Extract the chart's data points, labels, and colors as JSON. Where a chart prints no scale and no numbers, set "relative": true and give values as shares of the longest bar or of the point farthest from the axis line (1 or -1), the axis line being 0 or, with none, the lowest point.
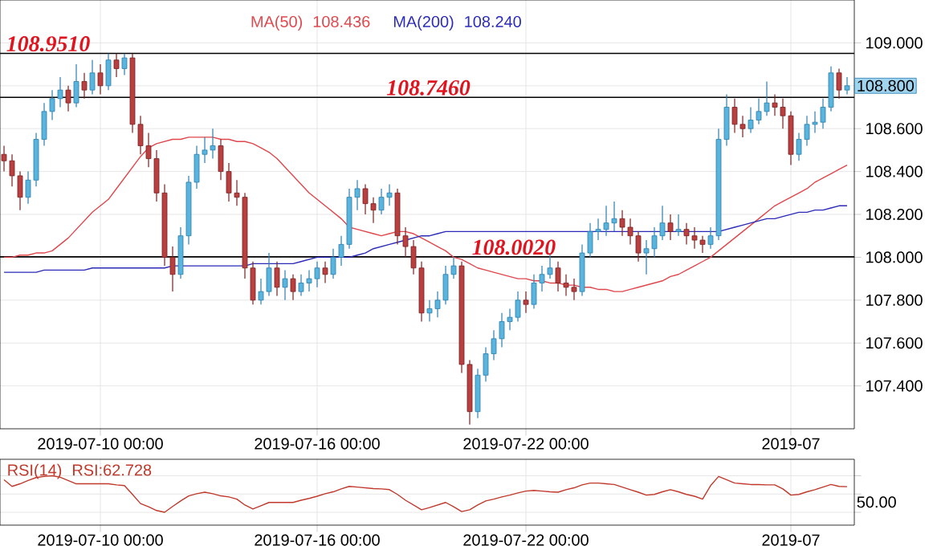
{
  "chart_data": [
    {
      "type": "candlestick",
      "categories": [
        null,
        null,
        null,
        null,
        null,
        null,
        null,
        null,
        null,
        null,
        null,
        null,
        "2019-07-10 00:00",
        null,
        null,
        null,
        null,
        null,
        null,
        null,
        null,
        null,
        null,
        null,
        null,
        null,
        null,
        null,
        null,
        null,
        null,
        null,
        null,
        null,
        null,
        null,
        null,
        null,
        null,
        "2019-07-16 00:00",
        null,
        null,
        null,
        null,
        null,
        null,
        null,
        null,
        null,
        null,
        null,
        null,
        null,
        null,
        null,
        null,
        null,
        null,
        null,
        null,
        null,
        null,
        null,
        null,
        null,
        "2019-07-22 00:00",
        null,
        null,
        null,
        null,
        null,
        null,
        null,
        null,
        null,
        null,
        null,
        null,
        null,
        null,
        null,
        null,
        null,
        null,
        null,
        null,
        null,
        null,
        null,
        null,
        null,
        null,
        null,
        null,
        null,
        null,
        null,
        null,
        "2019-07",
        null,
        null,
        null,
        null,
        null,
        null,
        null
      ],
      "ohlc": [
        [
          108.48,
          108.52,
          108.4,
          108.45
        ],
        [
          108.45,
          108.48,
          108.33,
          108.38
        ],
        [
          108.38,
          108.4,
          108.22,
          108.28
        ],
        [
          108.28,
          108.4,
          108.25,
          108.36
        ],
        [
          108.36,
          108.58,
          108.33,
          108.55
        ],
        [
          108.55,
          108.72,
          108.52,
          108.68
        ],
        [
          108.68,
          108.78,
          108.64,
          108.74
        ],
        [
          108.74,
          108.84,
          108.7,
          108.78
        ],
        [
          108.78,
          108.8,
          108.68,
          108.72
        ],
        [
          108.72,
          108.9,
          108.7,
          108.82
        ],
        [
          108.82,
          108.86,
          108.74,
          108.78
        ],
        [
          108.78,
          108.92,
          108.76,
          108.86
        ],
        [
          108.86,
          108.9,
          108.76,
          108.8
        ],
        [
          108.8,
          108.95,
          108.78,
          108.92
        ],
        [
          108.92,
          108.95,
          108.84,
          108.88
        ],
        [
          108.88,
          108.95,
          108.85,
          108.93
        ],
        [
          108.93,
          108.95,
          108.58,
          108.62
        ],
        [
          108.62,
          108.66,
          108.48,
          108.52
        ],
        [
          108.52,
          108.58,
          108.42,
          108.46
        ],
        [
          108.46,
          108.5,
          108.26,
          108.3
        ],
        [
          108.3,
          108.34,
          107.96,
          108.0
        ],
        [
          108.0,
          108.05,
          107.84,
          107.92
        ],
        [
          107.92,
          108.14,
          107.9,
          108.1
        ],
        [
          108.1,
          108.38,
          108.06,
          108.35
        ],
        [
          108.35,
          108.52,
          108.32,
          108.48
        ],
        [
          108.48,
          108.56,
          108.44,
          108.5
        ],
        [
          108.5,
          108.6,
          108.46,
          108.52
        ],
        [
          108.52,
          108.55,
          108.36,
          108.4
        ],
        [
          108.4,
          108.44,
          108.26,
          108.3
        ],
        [
          108.3,
          108.36,
          108.24,
          108.28
        ],
        [
          108.28,
          108.3,
          107.9,
          107.95
        ],
        [
          107.95,
          107.98,
          107.78,
          107.8
        ],
        [
          107.8,
          107.9,
          107.78,
          107.84
        ],
        [
          107.84,
          108.02,
          107.82,
          107.95
        ],
        [
          107.95,
          107.98,
          107.82,
          107.86
        ],
        [
          107.86,
          107.94,
          107.8,
          107.9
        ],
        [
          107.9,
          107.92,
          107.8,
          107.84
        ],
        [
          107.84,
          107.92,
          107.82,
          107.88
        ],
        [
          107.88,
          107.94,
          107.84,
          107.9
        ],
        [
          107.9,
          107.98,
          107.86,
          107.95
        ],
        [
          107.95,
          107.98,
          107.88,
          107.92
        ],
        [
          107.92,
          108.04,
          107.9,
          108.0
        ],
        [
          108.0,
          108.1,
          107.96,
          108.06
        ],
        [
          108.06,
          108.32,
          108.04,
          108.28
        ],
        [
          108.28,
          108.36,
          108.22,
          108.32
        ],
        [
          108.32,
          108.34,
          108.2,
          108.25
        ],
        [
          108.25,
          108.28,
          108.16,
          108.22
        ],
        [
          108.22,
          108.32,
          108.2,
          108.28
        ],
        [
          108.28,
          108.34,
          108.24,
          108.3
        ],
        [
          108.3,
          108.32,
          108.06,
          108.1
        ],
        [
          108.1,
          108.14,
          108.0,
          108.05
        ],
        [
          108.05,
          108.08,
          107.92,
          107.95
        ],
        [
          107.95,
          107.98,
          107.7,
          107.74
        ],
        [
          107.74,
          107.8,
          107.7,
          107.76
        ],
        [
          107.76,
          107.84,
          107.72,
          107.8
        ],
        [
          107.8,
          107.96,
          107.78,
          107.92
        ],
        [
          107.92,
          108.0,
          107.9,
          107.96
        ],
        [
          107.96,
          107.98,
          107.46,
          107.5
        ],
        [
          107.5,
          107.52,
          107.22,
          107.28
        ],
        [
          107.28,
          107.48,
          107.25,
          107.45
        ],
        [
          107.45,
          107.58,
          107.42,
          107.55
        ],
        [
          107.55,
          107.66,
          107.52,
          107.62
        ],
        [
          107.62,
          107.74,
          107.58,
          107.7
        ],
        [
          107.7,
          107.76,
          107.66,
          107.72
        ],
        [
          107.72,
          107.84,
          107.7,
          107.8
        ],
        [
          107.8,
          107.84,
          107.74,
          107.78
        ],
        [
          107.78,
          107.92,
          107.76,
          107.88
        ],
        [
          107.88,
          107.96,
          107.84,
          107.92
        ],
        [
          107.92,
          108.02,
          107.9,
          107.95
        ],
        [
          107.95,
          107.98,
          107.84,
          107.88
        ],
        [
          107.88,
          107.92,
          107.82,
          107.86
        ],
        [
          107.86,
          107.9,
          107.8,
          107.84
        ],
        [
          107.84,
          108.06,
          107.82,
          108.02
        ],
        [
          108.02,
          108.16,
          108.0,
          108.12
        ],
        [
          108.12,
          108.18,
          108.08,
          108.13
        ],
        [
          108.13,
          108.24,
          108.1,
          108.16
        ],
        [
          108.16,
          108.26,
          108.12,
          108.18
        ],
        [
          108.18,
          108.22,
          108.1,
          108.14
        ],
        [
          108.14,
          108.18,
          108.06,
          108.1
        ],
        [
          108.1,
          108.12,
          107.98,
          108.02
        ],
        [
          108.02,
          108.08,
          107.92,
          108.04
        ],
        [
          108.04,
          108.14,
          108.0,
          108.1
        ],
        [
          108.1,
          108.24,
          108.08,
          108.16
        ],
        [
          108.16,
          108.2,
          108.08,
          108.12
        ],
        [
          108.12,
          108.2,
          108.1,
          108.13
        ],
        [
          108.13,
          108.16,
          108.06,
          108.1
        ],
        [
          108.1,
          108.14,
          108.04,
          108.08
        ],
        [
          108.08,
          108.1,
          108.02,
          108.06
        ],
        [
          108.06,
          108.14,
          108.04,
          108.1
        ],
        [
          108.1,
          108.6,
          108.08,
          108.55
        ],
        [
          108.55,
          108.76,
          108.52,
          108.7
        ],
        [
          108.7,
          108.74,
          108.58,
          108.62
        ],
        [
          108.62,
          108.66,
          108.56,
          108.6
        ],
        [
          108.6,
          108.7,
          108.58,
          108.64
        ],
        [
          108.64,
          108.74,
          108.62,
          108.68
        ],
        [
          108.68,
          108.82,
          108.66,
          108.72
        ],
        [
          108.72,
          108.76,
          108.66,
          108.7
        ],
        [
          108.7,
          108.74,
          108.6,
          108.66
        ],
        [
          108.66,
          108.68,
          108.43,
          108.48
        ],
        [
          108.48,
          108.58,
          108.45,
          108.55
        ],
        [
          108.55,
          108.66,
          108.52,
          108.62
        ],
        [
          108.62,
          108.68,
          108.58,
          108.63
        ],
        [
          108.63,
          108.74,
          108.6,
          108.7
        ],
        [
          108.7,
          108.89,
          108.68,
          108.86
        ],
        [
          108.86,
          108.88,
          108.74,
          108.78
        ],
        [
          108.78,
          108.84,
          108.76,
          108.8
        ]
      ],
      "series": [
        {
          "name": "MA(50)",
          "type": "line",
          "color": "#e0474c",
          "values": [
            108.0,
            108.0,
            108.01,
            108.01,
            108.02,
            108.02,
            108.03,
            108.06,
            108.09,
            108.13,
            108.17,
            108.21,
            108.24,
            108.27,
            108.32,
            108.37,
            108.42,
            108.47,
            108.51,
            108.53,
            108.54,
            108.55,
            108.55,
            108.56,
            108.56,
            108.56,
            108.56,
            108.55,
            108.55,
            108.54,
            108.54,
            108.53,
            108.51,
            108.49,
            108.46,
            108.42,
            108.38,
            108.34,
            108.3,
            108.27,
            108.24,
            108.21,
            108.18,
            108.14,
            108.13,
            108.12,
            108.11,
            108.1,
            108.11,
            108.12,
            108.12,
            108.11,
            108.09,
            108.07,
            108.05,
            108.03,
            108.0,
            107.99,
            107.97,
            107.95,
            107.94,
            107.93,
            107.92,
            107.91,
            107.9,
            107.9,
            107.89,
            107.89,
            107.88,
            107.88,
            107.87,
            107.87,
            107.86,
            107.86,
            107.85,
            107.85,
            107.84,
            107.84,
            107.85,
            107.86,
            107.87,
            107.88,
            107.89,
            107.91,
            107.92,
            107.94,
            107.96,
            107.98,
            108.0,
            108.03,
            108.06,
            108.09,
            108.12,
            108.15,
            108.18,
            108.21,
            108.24,
            108.26,
            108.28,
            108.3,
            108.32,
            108.35,
            108.37,
            108.39,
            108.41,
            108.43
          ]
        },
        {
          "name": "MA(200)",
          "type": "line",
          "color": "#2b2bb8",
          "values": [
            107.93,
            107.93,
            107.93,
            107.93,
            107.93,
            107.94,
            107.94,
            107.94,
            107.94,
            107.94,
            107.94,
            107.95,
            107.95,
            107.95,
            107.95,
            107.95,
            107.95,
            107.95,
            107.95,
            107.95,
            107.95,
            107.96,
            107.96,
            107.96,
            107.96,
            107.96,
            107.96,
            107.96,
            107.96,
            107.96,
            107.96,
            107.97,
            107.97,
            107.97,
            107.97,
            107.97,
            107.97,
            107.98,
            107.99,
            108.0,
            108.0,
            108.0,
            108.0,
            108.0,
            108.01,
            108.02,
            108.04,
            108.05,
            108.06,
            108.07,
            108.08,
            108.09,
            108.1,
            108.1,
            108.11,
            108.12,
            108.12,
            108.12,
            108.12,
            108.12,
            108.12,
            108.12,
            108.12,
            108.12,
            108.12,
            108.12,
            108.12,
            108.12,
            108.12,
            108.12,
            108.12,
            108.12,
            108.12,
            108.12,
            108.12,
            108.12,
            108.12,
            108.12,
            108.12,
            108.12,
            108.12,
            108.12,
            108.12,
            108.12,
            108.12,
            108.12,
            108.12,
            108.12,
            108.12,
            108.12,
            108.13,
            108.14,
            108.15,
            108.16,
            108.17,
            108.18,
            108.18,
            108.19,
            108.2,
            108.21,
            108.21,
            108.22,
            108.22,
            108.23,
            108.24,
            108.24
          ]
        }
      ],
      "ylim": [
        107.2,
        109.2
      ],
      "yticks": [
        {
          "value": 107.4,
          "label": "107.400"
        },
        {
          "value": 107.6,
          "label": "107.600"
        },
        {
          "value": 107.8,
          "label": "107.800"
        },
        {
          "value": 108.0,
          "label": "108.000"
        },
        {
          "value": 108.2,
          "label": "108.200"
        },
        {
          "value": 108.4,
          "label": "108.400"
        },
        {
          "value": 108.6,
          "label": "108.600"
        },
        {
          "value": 108.8,
          "label": null
        },
        {
          "value": 109.0,
          "label": "109.000"
        }
      ],
      "ref_lines": [
        {
          "axis": "y",
          "value": 108.951,
          "label": "108.9510",
          "color": "#000000"
        },
        {
          "axis": "y",
          "value": 108.746,
          "label": "108.7460",
          "color": "#000000"
        },
        {
          "axis": "y",
          "value": 108.002,
          "label": "108.0020",
          "color": "#000000"
        }
      ],
      "annotations": [
        "108.436",
        "108.240",
        "108.800"
      ],
      "legend": "top",
      "grid": true
    },
    {
      "type": "line",
      "categories": [
        null,
        null,
        null,
        null,
        null,
        null,
        null,
        null,
        null,
        null,
        null,
        null,
        "2019-07-10 00:00",
        null,
        null,
        null,
        null,
        null,
        null,
        null,
        null,
        null,
        null,
        null,
        null,
        null,
        null,
        null,
        null,
        null,
        null,
        null,
        null,
        null,
        null,
        null,
        null,
        null,
        null,
        "2019-07-16 00:00",
        null,
        null,
        null,
        null,
        null,
        null,
        null,
        null,
        null,
        null,
        null,
        null,
        null,
        null,
        null,
        null,
        null,
        null,
        null,
        null,
        null,
        null,
        null,
        null,
        null,
        "2019-07-22 00:00",
        null,
        null,
        null,
        null,
        null,
        null,
        null,
        null,
        null,
        null,
        null,
        null,
        null,
        null,
        null,
        null,
        null,
        null,
        null,
        null,
        null,
        null,
        null,
        null,
        null,
        null,
        null,
        null,
        null,
        null,
        null,
        null,
        "2019-07",
        null,
        null,
        null,
        null,
        null,
        null,
        null
      ],
      "series": [
        {
          "name": "RSI(14)",
          "color": "#c0392b",
          "values": [
            0.89,
            0.71,
            0.78,
            0.87,
            0.95,
            0.98,
            1,
            0.96,
            0.87,
            0.78,
            0.78,
            0.78,
            0.78,
            0.78,
            0.75,
            0.73,
            0.49,
            0.24,
            0.15,
            0.05,
            0,
            0.16,
            0.31,
            0.45,
            0.51,
            0.55,
            0.51,
            0.45,
            0.42,
            0.36,
            0.2,
            0.09,
            0.18,
            0.27,
            0.27,
            0.27,
            0.27,
            0.33,
            0.38,
            0.44,
            0.51,
            0.56,
            0.64,
            0.71,
            0.69,
            0.67,
            0.65,
            0.64,
            0.62,
            0.49,
            0.33,
            0.2,
            0.07,
            0.13,
            0.2,
            0.27,
            0.15,
            0.02,
            0.07,
            0.2,
            0.31,
            0.36,
            0.42,
            0.47,
            0.53,
            0.58,
            0.6,
            0.58,
            0.56,
            0.55,
            0.62,
            0.67,
            0.75,
            0.8,
            0.8,
            0.78,
            0.76,
            0.69,
            0.62,
            0.55,
            0.47,
            0.49,
            0.56,
            0.62,
            0.56,
            0.49,
            0.44,
            0.36,
            0.73,
            0.98,
            0.89,
            0.8,
            0.78,
            0.76,
            0.76,
            0.75,
            0.75,
            0.64,
            0.47,
            0.49,
            0.56,
            0.62,
            0.69,
            0.76,
            0.71,
            0.7
          ]
        }
      ],
      "relative": true,
      "annotations": [
        "RSI:62.728",
        "50.00"
      ],
      "legend": "top left",
      "grid": true
    }
  ]
}
